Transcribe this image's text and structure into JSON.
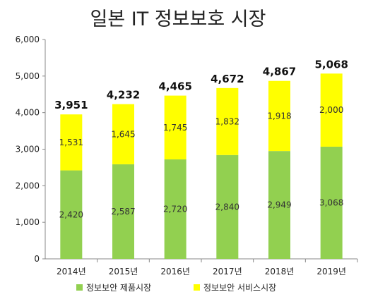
{
  "chart_data": {
    "type": "bar",
    "stacked": true,
    "title": "일본 IT 정보보호 시장",
    "categories": [
      "2014년",
      "2015년",
      "2016년",
      "2017년",
      "2018년",
      "2019년"
    ],
    "series": [
      {
        "name": "정보보안 제품시장",
        "values": [
          2420,
          2587,
          2720,
          2840,
          2949,
          3068
        ],
        "color": "#92d050",
        "labels": [
          "2,420",
          "2,587",
          "2,720",
          "2,840",
          "2,949",
          "3,068"
        ]
      },
      {
        "name": "정보보안 서비스시장",
        "values": [
          1531,
          1645,
          1745,
          1832,
          1918,
          2000
        ],
        "color": "#ffff00",
        "labels": [
          "1,531",
          "1,645",
          "1,745",
          "1,832",
          "1,918",
          "2,000"
        ]
      }
    ],
    "totals": [
      3951,
      4232,
      4465,
      4672,
      4867,
      5068
    ],
    "total_labels": [
      "3,951",
      "4,232",
      "4,465",
      "4,672",
      "4,867",
      "5,068"
    ],
    "ylim": [
      0,
      6000
    ],
    "yticks": [
      0,
      1000,
      2000,
      3000,
      4000,
      5000,
      6000
    ],
    "ytick_labels": [
      "0",
      "1,000",
      "2,000",
      "3,000",
      "4,000",
      "5,000",
      "6,000"
    ],
    "grid": false,
    "legend_position": "bottom"
  }
}
